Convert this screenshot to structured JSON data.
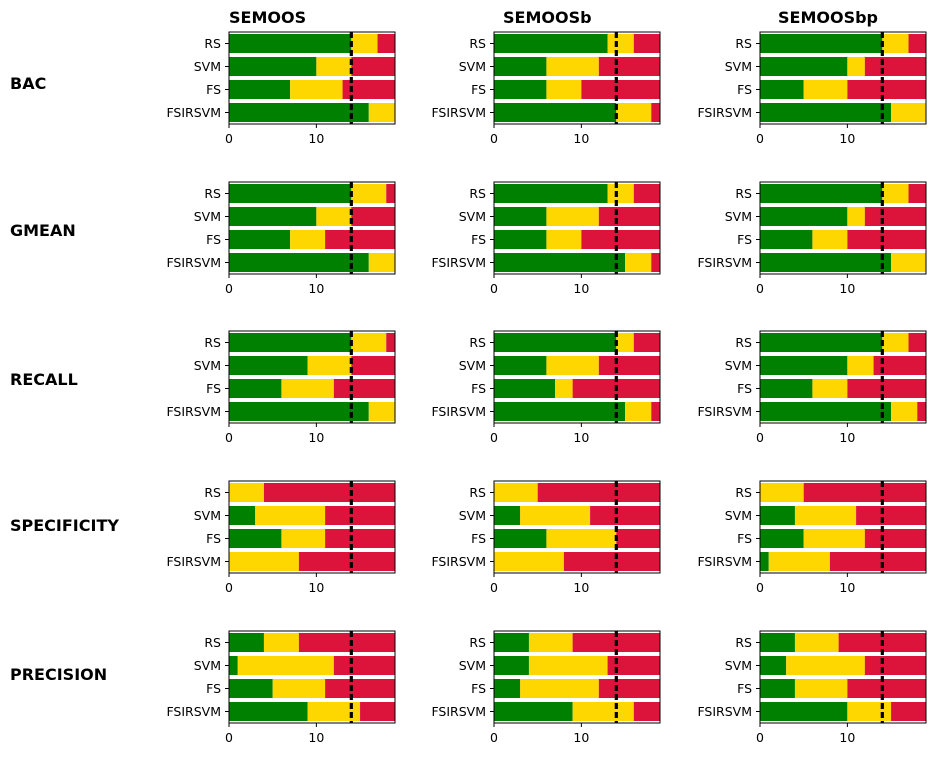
{
  "column_titles": [
    "SEMOOS",
    "SEMOOSb",
    "SEMOOSbp"
  ],
  "row_labels": [
    "BAC",
    "GMEAN",
    "RECALL",
    "SPECIFICITY",
    "PRECISION"
  ],
  "colors": {
    "win": "#008000",
    "tie": "#FFD700",
    "loss": "#DC143C",
    "critical_line": "#000000"
  },
  "chart_data": {
    "type": "bar",
    "orientation": "horizontal-stacked",
    "categories": [
      "RS",
      "SVM",
      "FS",
      "FSIRSVM"
    ],
    "series_order": [
      "win",
      "tie",
      "loss"
    ],
    "xlim": [
      0,
      19
    ],
    "xticks": [
      0,
      10
    ],
    "critical_value": 14,
    "panels": [
      {
        "metric": "BAC",
        "method": "SEMOOS",
        "win": [
          14,
          10,
          7,
          16
        ],
        "tie": [
          3,
          4,
          6,
          3
        ],
        "loss": [
          2,
          5,
          6,
          0
        ]
      },
      {
        "metric": "BAC",
        "method": "SEMOOSb",
        "win": [
          13,
          6,
          6,
          14
        ],
        "tie": [
          3,
          6,
          4,
          4
        ],
        "loss": [
          3,
          7,
          9,
          1
        ]
      },
      {
        "metric": "BAC",
        "method": "SEMOOSbp",
        "win": [
          14,
          10,
          5,
          15
        ],
        "tie": [
          3,
          2,
          5,
          4
        ],
        "loss": [
          2,
          7,
          9,
          0
        ]
      },
      {
        "metric": "GMEAN",
        "method": "SEMOOS",
        "win": [
          14,
          10,
          7,
          16
        ],
        "tie": [
          4,
          4,
          4,
          3
        ],
        "loss": [
          1,
          5,
          8,
          0
        ]
      },
      {
        "metric": "GMEAN",
        "method": "SEMOOSb",
        "win": [
          13,
          6,
          6,
          15
        ],
        "tie": [
          3,
          6,
          4,
          3
        ],
        "loss": [
          3,
          7,
          9,
          1
        ]
      },
      {
        "metric": "GMEAN",
        "method": "SEMOOSbp",
        "win": [
          14,
          10,
          6,
          15
        ],
        "tie": [
          3,
          2,
          4,
          4
        ],
        "loss": [
          2,
          7,
          9,
          0
        ]
      },
      {
        "metric": "RECALL",
        "method": "SEMOOS",
        "win": [
          14,
          9,
          6,
          16
        ],
        "tie": [
          4,
          5,
          6,
          3
        ],
        "loss": [
          1,
          5,
          7,
          0
        ]
      },
      {
        "metric": "RECALL",
        "method": "SEMOOSb",
        "win": [
          14,
          6,
          7,
          15
        ],
        "tie": [
          2,
          6,
          2,
          3
        ],
        "loss": [
          3,
          7,
          10,
          1
        ]
      },
      {
        "metric": "RECALL",
        "method": "SEMOOSbp",
        "win": [
          14,
          10,
          6,
          15
        ],
        "tie": [
          3,
          3,
          4,
          3
        ],
        "loss": [
          2,
          6,
          9,
          1
        ]
      },
      {
        "metric": "SPECIFICITY",
        "method": "SEMOOS",
        "win": [
          0,
          3,
          6,
          0
        ],
        "tie": [
          4,
          8,
          5,
          8
        ],
        "loss": [
          15,
          8,
          8,
          11
        ]
      },
      {
        "metric": "SPECIFICITY",
        "method": "SEMOOSb",
        "win": [
          0,
          3,
          6,
          0
        ],
        "tie": [
          5,
          8,
          8,
          8
        ],
        "loss": [
          14,
          8,
          5,
          11
        ]
      },
      {
        "metric": "SPECIFICITY",
        "method": "SEMOOSbp",
        "win": [
          0,
          4,
          5,
          1
        ],
        "tie": [
          5,
          7,
          7,
          7
        ],
        "loss": [
          14,
          8,
          7,
          11
        ]
      },
      {
        "metric": "PRECISION",
        "method": "SEMOOS",
        "win": [
          4,
          1,
          5,
          9
        ],
        "tie": [
          4,
          11,
          6,
          6
        ],
        "loss": [
          11,
          7,
          8,
          4
        ]
      },
      {
        "metric": "PRECISION",
        "method": "SEMOOSb",
        "win": [
          4,
          4,
          3,
          9
        ],
        "tie": [
          5,
          9,
          9,
          7
        ],
        "loss": [
          10,
          6,
          7,
          3
        ]
      },
      {
        "metric": "PRECISION",
        "method": "SEMOOSbp",
        "win": [
          4,
          3,
          4,
          10
        ],
        "tie": [
          5,
          9,
          6,
          5
        ],
        "loss": [
          10,
          7,
          9,
          4
        ]
      }
    ]
  }
}
